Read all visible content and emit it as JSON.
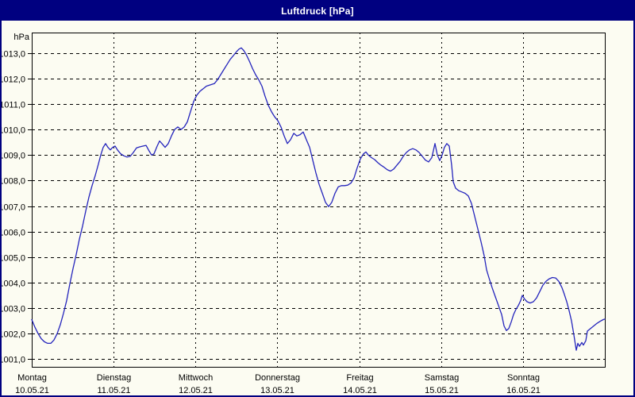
{
  "window": {
    "title": "Luftdruck [hPa]"
  },
  "colors": {
    "titlebar_bg": "#000080",
    "titlebar_text": "#ffffff",
    "window_bg": "#fcfcf2",
    "grid": "#000000",
    "line": "#2424bc"
  },
  "chart_data": {
    "type": "line",
    "title": "Luftdruck [hPa]",
    "unit_label": "hPa",
    "grid": "dashed",
    "legend": "none",
    "y_axis": {
      "min": 1001,
      "max": 1013,
      "step": 1,
      "tick_labels": [
        "1013,0",
        "1012,0",
        "1011,0",
        "1010,0",
        "1009,0",
        "1008,0",
        "1007,0",
        "1006,0",
        "1005,0",
        "1004,0",
        "1003,0",
        "1002,0",
        "1001,0"
      ]
    },
    "x_axis": {
      "unit": "day",
      "span_days": 7,
      "days": [
        {
          "label": "Montag",
          "date": "10.05.21"
        },
        {
          "label": "Dienstag",
          "date": "11.05.21"
        },
        {
          "label": "Mittwoch",
          "date": "12.05.21"
        },
        {
          "label": "Donnerstag",
          "date": "13.05.21"
        },
        {
          "label": "Freitag",
          "date": "14.05.21"
        },
        {
          "label": "Samstag",
          "date": "15.05.21"
        },
        {
          "label": "Sonntag",
          "date": "16.05.21"
        }
      ]
    },
    "series": [
      {
        "name": "Luftdruck",
        "color": "#2424bc",
        "points": [
          [
            0,
            1002.55
          ],
          [
            0.039,
            1002.25
          ],
          [
            0.078,
            1002
          ],
          [
            0.116,
            1001.8
          ],
          [
            0.155,
            1001.68
          ],
          [
            0.194,
            1001.62
          ],
          [
            0.233,
            1001.62
          ],
          [
            0.271,
            1001.75
          ],
          [
            0.31,
            1002
          ],
          [
            0.349,
            1002.35
          ],
          [
            0.388,
            1002.8
          ],
          [
            0.427,
            1003.3
          ],
          [
            0.465,
            1003.95
          ],
          [
            0.504,
            1004.55
          ],
          [
            0.543,
            1005.1
          ],
          [
            0.582,
            1005.7
          ],
          [
            0.62,
            1006.2
          ],
          [
            0.659,
            1006.8
          ],
          [
            0.698,
            1007.35
          ],
          [
            0.737,
            1007.8
          ],
          [
            0.776,
            1008.2
          ],
          [
            0.814,
            1008.65
          ],
          [
            0.843,
            1009
          ],
          [
            0.873,
            1009.3
          ],
          [
            0.902,
            1009.45
          ],
          [
            0.931,
            1009.3
          ],
          [
            0.96,
            1009.2
          ],
          [
            0.989,
            1009.3
          ],
          [
            1.018,
            1009.35
          ],
          [
            1.047,
            1009.2
          ],
          [
            1.086,
            1009.05
          ],
          [
            1.125,
            1008.97
          ],
          [
            1.163,
            1008.92
          ],
          [
            1.202,
            1008.95
          ],
          [
            1.241,
            1009.1
          ],
          [
            1.28,
            1009.28
          ],
          [
            1.319,
            1009.32
          ],
          [
            1.357,
            1009.35
          ],
          [
            1.396,
            1009.38
          ],
          [
            1.435,
            1009.15
          ],
          [
            1.464,
            1009
          ],
          [
            1.493,
            1009.05
          ],
          [
            1.532,
            1009.35
          ],
          [
            1.561,
            1009.55
          ],
          [
            1.59,
            1009.45
          ],
          [
            1.629,
            1009.3
          ],
          [
            1.668,
            1009.45
          ],
          [
            1.706,
            1009.75
          ],
          [
            1.745,
            1010
          ],
          [
            1.784,
            1010.1
          ],
          [
            1.823,
            1010
          ],
          [
            1.862,
            1010.1
          ],
          [
            1.9,
            1010.3
          ],
          [
            1.939,
            1010.7
          ],
          [
            1.978,
            1011.1
          ],
          [
            2.017,
            1011.35
          ],
          [
            2.055,
            1011.5
          ],
          [
            2.094,
            1011.6
          ],
          [
            2.133,
            1011.7
          ],
          [
            2.181,
            1011.75
          ],
          [
            2.23,
            1011.8
          ],
          [
            2.269,
            1011.95
          ],
          [
            2.307,
            1012.15
          ],
          [
            2.346,
            1012.35
          ],
          [
            2.385,
            1012.55
          ],
          [
            2.424,
            1012.75
          ],
          [
            2.463,
            1012.9
          ],
          [
            2.501,
            1013.05
          ],
          [
            2.53,
            1013.15
          ],
          [
            2.56,
            1013.2
          ],
          [
            2.589,
            1013.1
          ],
          [
            2.618,
            1012.95
          ],
          [
            2.656,
            1012.7
          ],
          [
            2.695,
            1012.4
          ],
          [
            2.734,
            1012.15
          ],
          [
            2.773,
            1011.95
          ],
          [
            2.812,
            1011.7
          ],
          [
            2.85,
            1011.3
          ],
          [
            2.889,
            1010.95
          ],
          [
            2.928,
            1010.7
          ],
          [
            2.967,
            1010.5
          ],
          [
            3.006,
            1010.35
          ],
          [
            3.044,
            1010.1
          ],
          [
            3.083,
            1009.75
          ],
          [
            3.122,
            1009.45
          ],
          [
            3.161,
            1009.6
          ],
          [
            3.2,
            1009.85
          ],
          [
            3.238,
            1009.75
          ],
          [
            3.277,
            1009.8
          ],
          [
            3.316,
            1009.9
          ],
          [
            3.355,
            1009.6
          ],
          [
            3.394,
            1009.3
          ],
          [
            3.432,
            1008.8
          ],
          [
            3.471,
            1008.3
          ],
          [
            3.51,
            1007.85
          ],
          [
            3.549,
            1007.5
          ],
          [
            3.587,
            1007.15
          ],
          [
            3.626,
            1006.98
          ],
          [
            3.665,
            1007.15
          ],
          [
            3.704,
            1007.5
          ],
          [
            3.743,
            1007.75
          ],
          [
            3.781,
            1007.8
          ],
          [
            3.82,
            1007.8
          ],
          [
            3.859,
            1007.82
          ],
          [
            3.898,
            1007.9
          ],
          [
            3.936,
            1008.1
          ],
          [
            3.975,
            1008.5
          ],
          [
            4.014,
            1008.85
          ],
          [
            4.053,
            1009.05
          ],
          [
            4.082,
            1009.12
          ],
          [
            4.111,
            1009
          ],
          [
            4.15,
            1008.9
          ],
          [
            4.188,
            1008.82
          ],
          [
            4.227,
            1008.7
          ],
          [
            4.266,
            1008.6
          ],
          [
            4.305,
            1008.52
          ],
          [
            4.344,
            1008.42
          ],
          [
            4.382,
            1008.37
          ],
          [
            4.421,
            1008.45
          ],
          [
            4.46,
            1008.6
          ],
          [
            4.499,
            1008.75
          ],
          [
            4.537,
            1008.95
          ],
          [
            4.576,
            1009.1
          ],
          [
            4.615,
            1009.2
          ],
          [
            4.654,
            1009.25
          ],
          [
            4.693,
            1009.2
          ],
          [
            4.731,
            1009.1
          ],
          [
            4.77,
            1008.95
          ],
          [
            4.809,
            1008.8
          ],
          [
            4.848,
            1008.73
          ],
          [
            4.886,
            1008.9
          ],
          [
            4.925,
            1009.45
          ],
          [
            4.954,
            1009
          ],
          [
            4.983,
            1008.78
          ],
          [
            5.012,
            1009
          ],
          [
            5.041,
            1009.3
          ],
          [
            5.07,
            1009.45
          ],
          [
            5.1,
            1009.35
          ],
          [
            5.129,
            1008.6
          ],
          [
            5.148,
            1007.95
          ],
          [
            5.177,
            1007.7
          ],
          [
            5.216,
            1007.6
          ],
          [
            5.255,
            1007.55
          ],
          [
            5.294,
            1007.5
          ],
          [
            5.332,
            1007.4
          ],
          [
            5.371,
            1007.1
          ],
          [
            5.41,
            1006.6
          ],
          [
            5.449,
            1006.1
          ],
          [
            5.488,
            1005.6
          ],
          [
            5.526,
            1005.05
          ],
          [
            5.555,
            1004.5
          ],
          [
            5.584,
            1004.2
          ],
          [
            5.623,
            1003.8
          ],
          [
            5.662,
            1003.45
          ],
          [
            5.701,
            1003.1
          ],
          [
            5.74,
            1002.75
          ],
          [
            5.769,
            1002.3
          ],
          [
            5.798,
            1002.12
          ],
          [
            5.827,
            1002.2
          ],
          [
            5.856,
            1002.45
          ],
          [
            5.885,
            1002.75
          ],
          [
            5.914,
            1002.95
          ],
          [
            5.943,
            1003.1
          ],
          [
            5.972,
            1003.3
          ],
          [
            5.992,
            1003.5
          ],
          [
            6.021,
            1003.35
          ],
          [
            6.05,
            1003.25
          ],
          [
            6.088,
            1003.2
          ],
          [
            6.127,
            1003.25
          ],
          [
            6.166,
            1003.4
          ],
          [
            6.205,
            1003.65
          ],
          [
            6.244,
            1003.9
          ],
          [
            6.282,
            1004.05
          ],
          [
            6.321,
            1004.15
          ],
          [
            6.36,
            1004.2
          ],
          [
            6.399,
            1004.18
          ],
          [
            6.438,
            1004.05
          ],
          [
            6.476,
            1003.8
          ],
          [
            6.505,
            1003.55
          ],
          [
            6.535,
            1003.25
          ],
          [
            6.564,
            1002.9
          ],
          [
            6.593,
            1002.5
          ],
          [
            6.622,
            1001.95
          ],
          [
            6.641,
            1001.55
          ],
          [
            6.651,
            1001.35
          ],
          [
            6.67,
            1001.62
          ],
          [
            6.69,
            1001.5
          ],
          [
            6.719,
            1001.65
          ],
          [
            6.738,
            1001.55
          ],
          [
            6.767,
            1001.72
          ],
          [
            6.787,
            1002.1
          ],
          [
            6.825,
            1002.2
          ],
          [
            6.864,
            1002.3
          ],
          [
            6.903,
            1002.4
          ],
          [
            6.942,
            1002.48
          ],
          [
            6.981,
            1002.55
          ],
          [
            7,
            1002.57
          ]
        ]
      }
    ]
  }
}
